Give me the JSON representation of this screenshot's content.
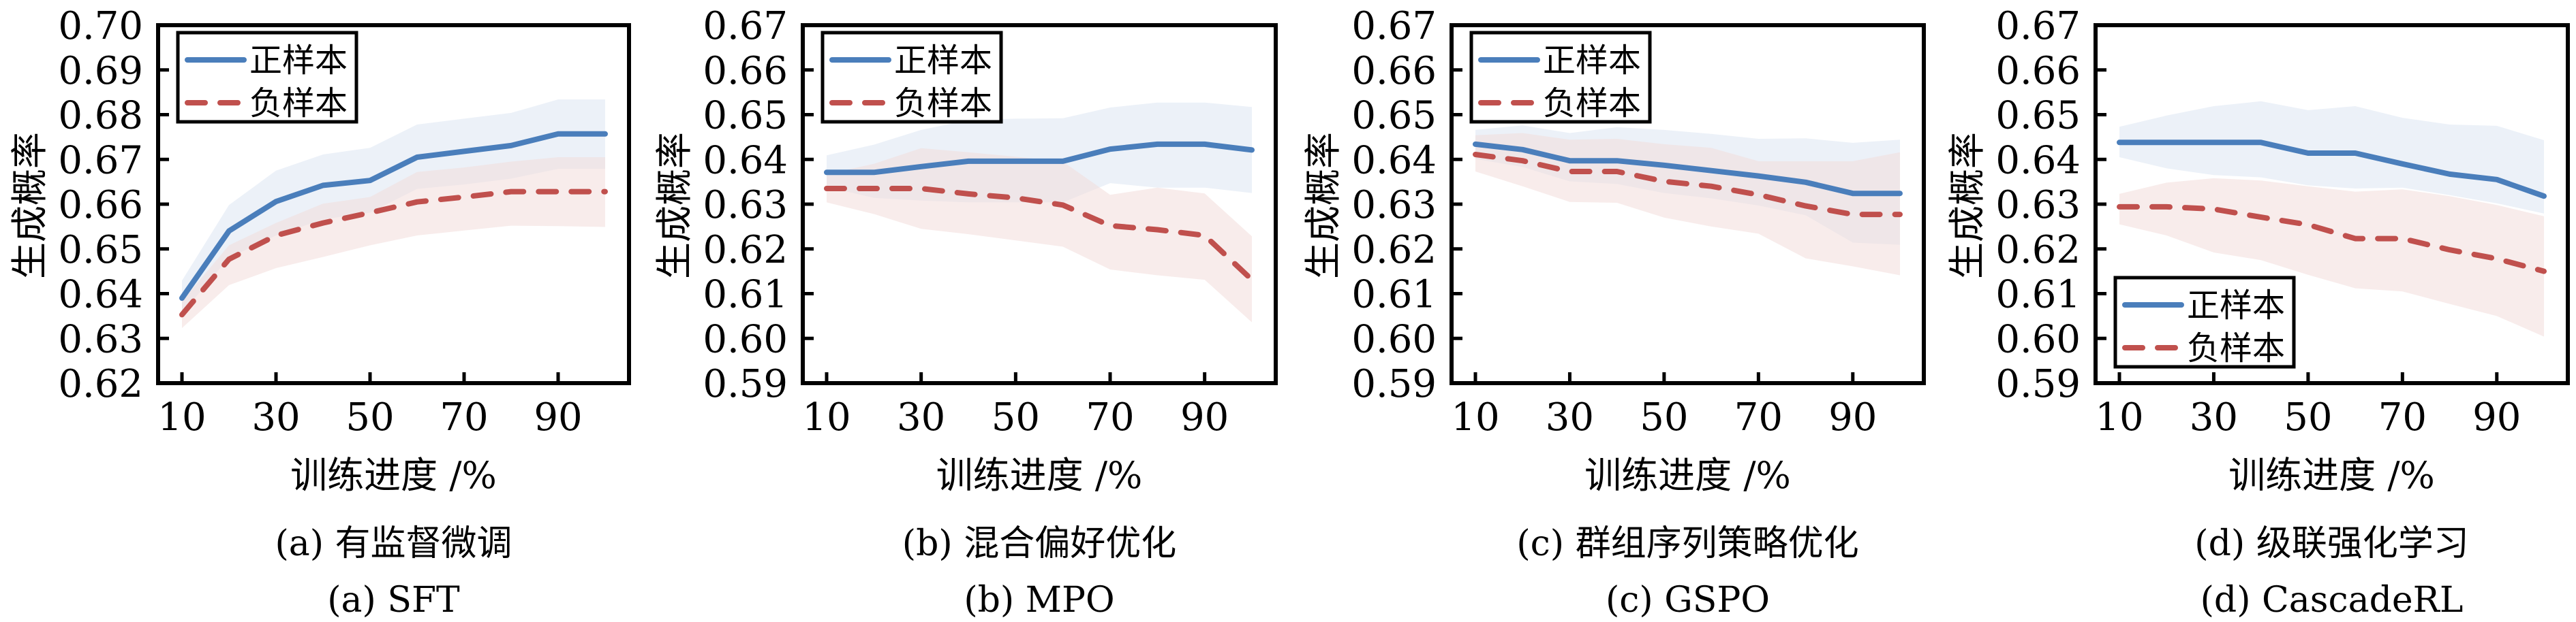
{
  "colors": {
    "positive": "#4A7EBB",
    "negative": "#C0504D",
    "positive_band": "#DCE6F2",
    "negative_band": "#F2DCDB"
  },
  "legend_labels": {
    "positive": "正样本",
    "negative": "负样本"
  },
  "chart_data": [
    {
      "type": "line",
      "title": "",
      "caption_cn": "(a) 有监督微调",
      "caption_en": "(a) SFT",
      "xlabel": "训练进度 /%",
      "ylabel": "生成概率",
      "x": [
        10,
        20,
        30,
        40,
        50,
        60,
        70,
        80,
        90,
        100
      ],
      "xticks": [
        10,
        30,
        50,
        70,
        90
      ],
      "xtick_labels": [
        "10",
        "30",
        "50",
        "70",
        "90"
      ],
      "ylim": [
        0.62,
        0.7
      ],
      "yticks": [
        0.62,
        0.63,
        0.64,
        0.65,
        0.66,
        0.67,
        0.68,
        0.69,
        0.7
      ],
      "ytick_labels": [
        "0.62",
        "0.63",
        "0.64",
        "0.65",
        "0.66",
        "0.67",
        "0.68",
        "0.69",
        "0.70"
      ],
      "grid": false,
      "legend_position": "top-left",
      "series": [
        {
          "name": "正样本",
          "key": "positive",
          "style": "solid",
          "values": [
            0.639,
            0.654,
            0.6606,
            0.6642,
            0.6653,
            0.6705,
            0.6718,
            0.6731,
            0.6757,
            0.6757
          ],
          "upper": [
            0.6429,
            0.6598,
            0.6675,
            0.6711,
            0.6726,
            0.6778,
            0.6791,
            0.6804,
            0.6834,
            0.6834
          ],
          "lower": [
            0.6356,
            0.648,
            0.653,
            0.6566,
            0.6581,
            0.6634,
            0.6644,
            0.6657,
            0.6679,
            0.6679
          ]
        },
        {
          "name": "负样本",
          "key": "negative",
          "style": "dashed",
          "values": [
            0.6353,
            0.6477,
            0.653,
            0.6558,
            0.6581,
            0.6605,
            0.6616,
            0.6628,
            0.6628,
            0.6628
          ],
          "upper": [
            0.6383,
            0.6508,
            0.6558,
            0.6601,
            0.6616,
            0.6672,
            0.6682,
            0.6695,
            0.6705,
            0.6705
          ],
          "lower": [
            0.6323,
            0.6419,
            0.6457,
            0.6482,
            0.6508,
            0.653,
            0.6541,
            0.6552,
            0.6551,
            0.6549
          ]
        }
      ]
    },
    {
      "type": "line",
      "title": "",
      "caption_cn": "(b) 混合偏好优化",
      "caption_en": "(b) MPO",
      "xlabel": "训练进度 /%",
      "ylabel": "生成概率",
      "x": [
        10,
        20,
        30,
        40,
        50,
        60,
        70,
        80,
        90,
        100
      ],
      "xticks": [
        10,
        30,
        50,
        70,
        90
      ],
      "xtick_labels": [
        "10",
        "30",
        "50",
        "70",
        "90"
      ],
      "ylim": [
        0.59,
        0.67
      ],
      "yticks": [
        0.59,
        0.6,
        0.61,
        0.62,
        0.63,
        0.64,
        0.65,
        0.66,
        0.67
      ],
      "ytick_labels": [
        "0.59",
        "0.60",
        "0.61",
        "0.62",
        "0.63",
        "0.64",
        "0.65",
        "0.66",
        "0.67"
      ],
      "grid": false,
      "legend_position": "top-left",
      "series": [
        {
          "name": "正样本",
          "key": "positive",
          "style": "solid",
          "values": [
            0.6371,
            0.6371,
            0.6384,
            0.6396,
            0.6396,
            0.6396,
            0.6423,
            0.6434,
            0.6434,
            0.6421
          ],
          "upper": [
            0.6409,
            0.6433,
            0.6466,
            0.6488,
            0.6491,
            0.6492,
            0.6516,
            0.6527,
            0.6527,
            0.6517
          ],
          "lower": [
            0.6339,
            0.6314,
            0.6308,
            0.6304,
            0.6304,
            0.6304,
            0.6347,
            0.6337,
            0.6337,
            0.6325
          ]
        },
        {
          "name": "负样本",
          "key": "negative",
          "style": "dashed",
          "values": [
            0.6335,
            0.6335,
            0.6335,
            0.6323,
            0.6314,
            0.6298,
            0.6252,
            0.6243,
            0.623,
            0.6131
          ],
          "upper": [
            0.6367,
            0.639,
            0.6425,
            0.6416,
            0.6406,
            0.6395,
            0.6321,
            0.6337,
            0.6324,
            0.6228
          ],
          "lower": [
            0.6304,
            0.6278,
            0.6245,
            0.6233,
            0.6219,
            0.6205,
            0.6154,
            0.6141,
            0.6131,
            0.6036
          ]
        }
      ]
    },
    {
      "type": "line",
      "title": "",
      "caption_cn": "(c) 群组序列策略优化",
      "caption_en": "(c) GSPO",
      "xlabel": "训练进度 /%",
      "ylabel": "生成概率",
      "x": [
        10,
        20,
        30,
        40,
        50,
        60,
        70,
        80,
        90,
        100
      ],
      "xticks": [
        10,
        30,
        50,
        70,
        90
      ],
      "xtick_labels": [
        "10",
        "30",
        "50",
        "70",
        "90"
      ],
      "ylim": [
        0.59,
        0.67
      ],
      "yticks": [
        0.59,
        0.6,
        0.61,
        0.62,
        0.63,
        0.64,
        0.65,
        0.66,
        0.67
      ],
      "ytick_labels": [
        "0.59",
        "0.60",
        "0.61",
        "0.62",
        "0.63",
        "0.64",
        "0.65",
        "0.66",
        "0.67"
      ],
      "grid": false,
      "legend_position": "top-left",
      "series": [
        {
          "name": "正样本",
          "key": "positive",
          "style": "solid",
          "values": [
            0.6434,
            0.6422,
            0.6397,
            0.6397,
            0.6387,
            0.6375,
            0.6363,
            0.6349,
            0.6324,
            0.6324
          ],
          "upper": [
            0.6466,
            0.6476,
            0.6459,
            0.6472,
            0.6466,
            0.6457,
            0.6446,
            0.6447,
            0.6437,
            0.6444
          ],
          "lower": [
            0.6401,
            0.6383,
            0.6351,
            0.6345,
            0.6325,
            0.6313,
            0.6297,
            0.6275,
            0.6214,
            0.6209
          ]
        },
        {
          "name": "负样本",
          "key": "negative",
          "style": "dashed",
          "values": [
            0.6411,
            0.6397,
            0.6373,
            0.6373,
            0.6351,
            0.634,
            0.6321,
            0.6296,
            0.6277,
            0.6277
          ],
          "upper": [
            0.6454,
            0.6459,
            0.6444,
            0.6446,
            0.6434,
            0.6426,
            0.6396,
            0.6396,
            0.6396,
            0.6416
          ],
          "lower": [
            0.6373,
            0.634,
            0.6305,
            0.6303,
            0.627,
            0.625,
            0.6234,
            0.6179,
            0.6161,
            0.6141
          ]
        }
      ]
    },
    {
      "type": "line",
      "title": "",
      "caption_cn": "(d) 级联强化学习",
      "caption_en": "(d) CascadeRL",
      "xlabel": "训练进度 /%",
      "ylabel": "生成概率",
      "x": [
        10,
        20,
        30,
        40,
        50,
        60,
        70,
        80,
        90,
        100
      ],
      "xticks": [
        10,
        30,
        50,
        70,
        90
      ],
      "xtick_labels": [
        "10",
        "30",
        "50",
        "70",
        "90"
      ],
      "ylim": [
        0.59,
        0.67
      ],
      "yticks": [
        0.59,
        0.6,
        0.61,
        0.62,
        0.63,
        0.64,
        0.65,
        0.66,
        0.67
      ],
      "ytick_labels": [
        "0.59",
        "0.60",
        "0.61",
        "0.62",
        "0.63",
        "0.64",
        "0.65",
        "0.66",
        "0.67"
      ],
      "grid": false,
      "legend_position": "bottom-left",
      "series": [
        {
          "name": "正样本",
          "key": "positive",
          "style": "solid",
          "values": [
            0.6438,
            0.6438,
            0.6438,
            0.6438,
            0.6414,
            0.6414,
            0.639,
            0.6367,
            0.6355,
            0.6318
          ],
          "upper": [
            0.6473,
            0.6498,
            0.6519,
            0.653,
            0.651,
            0.6519,
            0.6493,
            0.6478,
            0.6475,
            0.6443
          ],
          "lower": [
            0.6405,
            0.638,
            0.6365,
            0.636,
            0.6342,
            0.6335,
            0.6337,
            0.632,
            0.6302,
            0.6279
          ]
        },
        {
          "name": "负样本",
          "key": "negative",
          "style": "dashed",
          "values": [
            0.6294,
            0.6294,
            0.6289,
            0.6271,
            0.6254,
            0.6223,
            0.6223,
            0.6198,
            0.6178,
            0.615
          ],
          "upper": [
            0.6323,
            0.6348,
            0.6358,
            0.6353,
            0.634,
            0.6328,
            0.6333,
            0.6318,
            0.6298,
            0.6273
          ],
          "lower": [
            0.6255,
            0.623,
            0.6192,
            0.6175,
            0.6142,
            0.6112,
            0.6105,
            0.6077,
            0.605,
            0.6004
          ]
        }
      ]
    }
  ]
}
